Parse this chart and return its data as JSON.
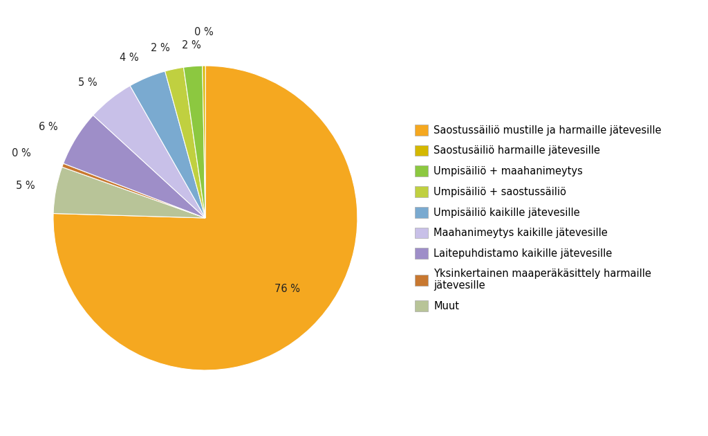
{
  "labels": [
    "Saostussäiliö mustille ja harmaille jätevesille",
    "Saostusäiliö harmaille jätevesille",
    "Umpisäiliö + maahanimeytys",
    "Umpisäiliö + saostussäiliö",
    "Umpisäiliö kaikille jätevesille",
    "Maahanimeytys kaikille jätevesille",
    "Laitepuhdistamo kaikille jätevesille",
    "Yksinkertainen maaperäkäsittely harmaille\njätevesille",
    "Muut"
  ],
  "values": [
    76,
    0.3,
    2,
    2,
    4,
    5,
    6,
    0.4,
    5
  ],
  "display_pcts": [
    "76 %",
    "0 %",
    "2 %",
    "2 %",
    "4 %",
    "5 %",
    "6 %",
    "0 %",
    "5 %"
  ],
  "colors": [
    "#F5A820",
    "#D4B800",
    "#8CC840",
    "#C0D040",
    "#7AAAD0",
    "#C8C0E8",
    "#9E8EC8",
    "#C87830",
    "#B8C498"
  ],
  "background_color": "#FFFFFF",
  "pct_fontsize": 10.5,
  "legend_fontsize": 10.5
}
